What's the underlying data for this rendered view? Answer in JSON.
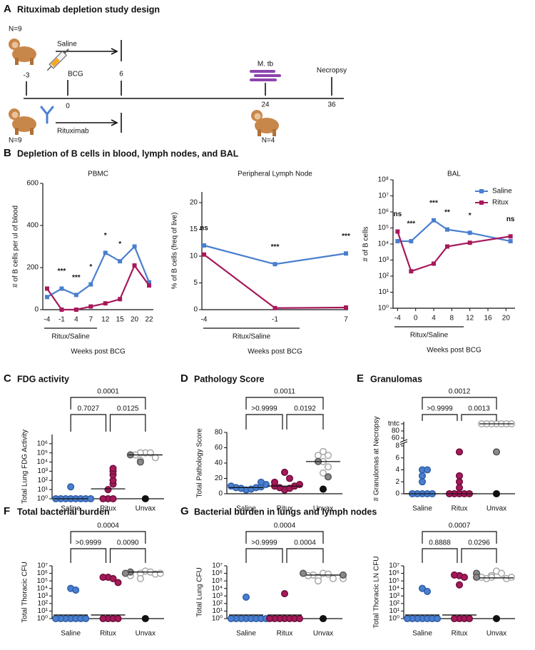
{
  "study_design": {
    "panel": "A",
    "title": "Rituximab depletion study design",
    "top_n": "N=9",
    "saline": "Saline",
    "bcg": "BCG",
    "weeks": [
      "-3",
      "0",
      "6",
      "24",
      "36"
    ],
    "mtb": "M. tb",
    "necropsy": "Necropsy",
    "rituximab": "Rituximab",
    "bottom_n": "N=9",
    "necropsy_n": "N=4"
  },
  "chart_data": [
    {
      "type": "line",
      "panel": "B",
      "title": "Depletion of B cells in blood, lymph nodes, and BAL",
      "subtitle": "PBMC",
      "categories": [
        "-4",
        "-1",
        "4",
        "7",
        "12",
        "15",
        "20",
        "22"
      ],
      "ylim": [
        0,
        600
      ],
      "yticks": [
        0,
        200,
        400,
        600
      ],
      "ylabel": "# of B cells per ul of blood",
      "xlabel": "Weeks post BCG",
      "treatment": "Ritux/Saline",
      "series": [
        {
          "name": "Saline",
          "color": "#4a7fcf",
          "values": [
            60,
            100,
            70,
            120,
            270,
            230,
            300,
            130
          ]
        },
        {
          "name": "Ritux",
          "color": "#a6195a",
          "values": [
            100,
            0,
            0,
            15,
            30,
            50,
            210,
            115
          ]
        }
      ],
      "significance": [
        null,
        "***",
        "***",
        "*",
        "*",
        "*",
        null,
        null
      ]
    },
    {
      "type": "line",
      "subtitle": "Peripheral Lymph Node",
      "categories": [
        "-4",
        "-1",
        "7"
      ],
      "ylim": [
        0,
        22
      ],
      "yticks": [
        0,
        5,
        10,
        15,
        20
      ],
      "ylabel": "% of B cells (freq of live)",
      "xlabel": "Weeks post BCG",
      "treatment": "Ritux/Saline",
      "series": [
        {
          "name": "Saline",
          "color": "#4a7fcf",
          "values": [
            12,
            8.5,
            10.5
          ]
        },
        {
          "name": "Ritux",
          "color": "#a6195a",
          "values": [
            10.3,
            0.3,
            0.4
          ]
        }
      ],
      "significance": [
        "ns",
        "***",
        "***"
      ]
    },
    {
      "type": "line",
      "subtitle": "BAL",
      "log_scale": true,
      "legend": "top-right",
      "xlim": [
        -5,
        22
      ],
      "xticks": [
        -4,
        0,
        4,
        8,
        12,
        16,
        20
      ],
      "ylim": [
        1,
        100000000
      ],
      "yticks": [
        {
          "value": 1,
          "label": "10⁰"
        },
        {
          "value": 10,
          "label": "10¹"
        },
        {
          "value": 100,
          "label": "10²"
        },
        {
          "value": 1000,
          "label": "10³"
        },
        {
          "value": 10000,
          "label": "10⁴"
        },
        {
          "value": 100000,
          "label": "10⁵"
        },
        {
          "value": 1000000,
          "label": "10⁶"
        },
        {
          "value": 10000000,
          "label": "10⁷"
        },
        {
          "value": 100000000,
          "label": "10⁸"
        }
      ],
      "ylabel": "# of B cells",
      "xlabel": "Weeks post BCG",
      "treatment": "Ritux/Saline",
      "series": [
        {
          "name": "Saline",
          "color": "#4a7fcf",
          "x": [
            -4,
            -1,
            4,
            7,
            12,
            21
          ],
          "values": [
            15000,
            15000,
            300000,
            80000,
            50000,
            15000
          ]
        },
        {
          "name": "Ritux",
          "color": "#a6195a",
          "x": [
            -4,
            -1,
            4,
            7,
            12,
            21
          ],
          "values": [
            60000,
            200,
            600,
            7000,
            12000,
            30000
          ]
        }
      ],
      "significance": [
        "ns",
        "***",
        "***",
        "**",
        "*",
        "ns"
      ]
    },
    {
      "type": "strip",
      "panel": "C",
      "title": "FDG activity",
      "log_scale": true,
      "ylim": [
        1,
        10000000
      ],
      "yticks": [
        {
          "value": 1,
          "label": "10⁰"
        },
        {
          "value": 10,
          "label": "10¹"
        },
        {
          "value": 100,
          "label": "10²"
        },
        {
          "value": 1000,
          "label": "10³"
        },
        {
          "value": 10000,
          "label": "10⁴"
        },
        {
          "value": 100000,
          "label": "10⁵"
        },
        {
          "value": 1000000,
          "label": "10⁶"
        }
      ],
      "ylabel": "Total Lung FDG Activity",
      "p_values": [
        "0.7027",
        "0.0125",
        "0.0001"
      ],
      "groups": [
        {
          "name": "Saline",
          "median": 1,
          "points": [
            {
              "fill": "#4a7fcf",
              "stroke": "#2f5fa8",
              "values": [
                1,
                1,
                1,
                1,
                1,
                1,
                1,
                1,
                20
              ]
            }
          ]
        },
        {
          "name": "Ritux",
          "median": 12,
          "points": [
            {
              "fill": "#a6195a",
              "stroke": "#6e0f3a",
              "values": [
                1,
                1,
                1,
                10,
                40,
                100,
                400,
                1000,
                2000
              ]
            }
          ]
        },
        {
          "name": "Unvax",
          "median": 60000,
          "points": [
            {
              "fill": "#ffffff",
              "stroke": "#a8a8a8",
              "values": [
                100000,
                100000,
                100000,
                30000,
                60000,
                15000
              ]
            },
            {
              "fill": "#8a8a8a",
              "stroke": "#555555",
              "values": [
                60000,
                10000
              ]
            },
            {
              "fill": "#111111",
              "stroke": "#111111",
              "values": [
                1
              ]
            }
          ]
        }
      ]
    },
    {
      "type": "strip",
      "panel": "D",
      "title": "Pathology Score",
      "ylim": [
        0,
        80
      ],
      "yticks": [
        0,
        20,
        40,
        60,
        80
      ],
      "ylabel": "Total Pathology Score",
      "p_values": [
        ">0.9999",
        "0.0192",
        "0.0011"
      ],
      "groups": [
        {
          "name": "Saline",
          "median": 8,
          "points": [
            {
              "fill": "#4a7fcf",
              "stroke": "#2f5fa8",
              "values": [
                5,
                6,
                7,
                8,
                8,
                9,
                10,
                12,
                15
              ]
            }
          ]
        },
        {
          "name": "Ritux",
          "median": 10,
          "points": [
            {
              "fill": "#a6195a",
              "stroke": "#6e0f3a",
              "values": [
                5,
                7,
                8,
                10,
                10,
                12,
                15,
                20,
                28
              ]
            }
          ]
        },
        {
          "name": "Unvax",
          "median": 42,
          "points": [
            {
              "fill": "#ffffff",
              "stroke": "#a8a8a8",
              "values": [
                55,
                50,
                50,
                42,
                35,
                27
              ]
            },
            {
              "fill": "#8a8a8a",
              "stroke": "#555555",
              "values": [
                42,
                22
              ]
            },
            {
              "fill": "#111111",
              "stroke": "#111111",
              "values": [
                6
              ]
            }
          ]
        }
      ]
    },
    {
      "type": "strip",
      "panel": "E",
      "title": "Granulomas",
      "ylim": [
        0,
        8
      ],
      "upper_ylim": [
        60,
        80
      ],
      "yticks": [
        0,
        2,
        4,
        6,
        8,
        60,
        80,
        "tntc"
      ],
      "ylabel": "# Granulomas at Necropsy",
      "p_values": [
        ">0.9999",
        "0.0013",
        "0.0012"
      ],
      "groups": [
        {
          "name": "Saline",
          "median": 0,
          "points": [
            {
              "fill": "#4a7fcf",
              "stroke": "#2f5fa8",
              "values": [
                4,
                4,
                3,
                2,
                0,
                0,
                0,
                0,
                0
              ]
            }
          ]
        },
        {
          "name": "Ritux",
          "median": 0,
          "points": [
            {
              "fill": "#a6195a",
              "stroke": "#6e0f3a",
              "values": [
                7,
                3,
                2,
                1,
                0,
                0,
                0,
                0,
                0
              ]
            }
          ]
        },
        {
          "name": "Unvax",
          "median": "tntc",
          "points": [
            {
              "fill": "#ffffff",
              "stroke": "#a8a8a8",
              "values": [
                "tntc",
                "tntc",
                "tntc",
                "tntc",
                "tntc",
                "tntc",
                "tntc"
              ]
            },
            {
              "fill": "#8a8a8a",
              "stroke": "#555555",
              "values": [
                7
              ]
            },
            {
              "fill": "#111111",
              "stroke": "#111111",
              "values": [
                0
              ]
            }
          ]
        }
      ]
    },
    {
      "type": "strip",
      "panel": "F",
      "title": "Total bacterial burden",
      "log_scale": true,
      "ylim": [
        1,
        10000000
      ],
      "yticks": [
        {
          "value": 1,
          "label": "10⁰"
        },
        {
          "value": 10,
          "label": "10¹"
        },
        {
          "value": 100,
          "label": "10²"
        },
        {
          "value": 1000,
          "label": "10³"
        },
        {
          "value": 10000,
          "label": "10⁴"
        },
        {
          "value": 100000,
          "label": "10⁵"
        },
        {
          "value": 1000000,
          "label": "10⁶"
        },
        {
          "value": 10000000,
          "label": "10⁷"
        }
      ],
      "ylabel": "Total Thoracic CFU",
      "p_values": [
        ">0.9999",
        "0.0090",
        "0.0004"
      ],
      "groups": [
        {
          "name": "Saline",
          "median": 3,
          "points": [
            {
              "fill": "#4a7fcf",
              "stroke": "#2f5fa8",
              "values": [
                10000,
                6000,
                1,
                1,
                1,
                1,
                1,
                1,
                1
              ]
            }
          ]
        },
        {
          "name": "Ritux",
          "median": 3,
          "points": [
            {
              "fill": "#a6195a",
              "stroke": "#6e0f3a",
              "values": [
                300000,
                200000,
                300000,
                60000,
                1,
                1,
                1,
                1
              ]
            }
          ]
        },
        {
          "name": "Unvax",
          "median": 1500000,
          "points": [
            {
              "fill": "#ffffff",
              "stroke": "#a8a8a8",
              "values": [
                2000000,
                1500000,
                1000000,
                800000,
                200000,
                1000000,
                500000
              ]
            },
            {
              "fill": "#8a8a8a",
              "stroke": "#555555",
              "values": [
                1500000,
                1000000
              ]
            },
            {
              "fill": "#111111",
              "stroke": "#111111",
              "values": [
                1
              ]
            }
          ]
        }
      ]
    },
    {
      "type": "strip",
      "panel": "G",
      "title": "Bacterial burden in lungs and lymph nodes",
      "log_scale": true,
      "ylim": [
        1,
        10000000
      ],
      "yticks": [
        {
          "value": 1,
          "label": "10⁰"
        },
        {
          "value": 10,
          "label": "10¹"
        },
        {
          "value": 100,
          "label": "10²"
        },
        {
          "value": 1000,
          "label": "10³"
        },
        {
          "value": 10000,
          "label": "10⁴"
        },
        {
          "value": 100000,
          "label": "10⁵"
        },
        {
          "value": 1000000,
          "label": "10⁶"
        },
        {
          "value": 10000000,
          "label": "10⁷"
        }
      ],
      "ylabel": "Total Lung CFU",
      "p_values": [
        ">0.9999",
        "0.0004",
        "0.0004"
      ],
      "groups": [
        {
          "name": "Saline",
          "median": 3,
          "points": [
            {
              "fill": "#4a7fcf",
              "stroke": "#2f5fa8",
              "values": [
                700,
                1,
                1,
                1,
                1,
                1,
                1,
                1,
                1
              ]
            }
          ]
        },
        {
          "name": "Ritux",
          "median": 3,
          "points": [
            {
              "fill": "#a6195a",
              "stroke": "#6e0f3a",
              "values": [
                2000,
                1,
                1,
                1,
                1,
                1,
                1,
                1
              ]
            }
          ]
        },
        {
          "name": "Unvax",
          "median": 600000,
          "points": [
            {
              "fill": "#ffffff",
              "stroke": "#a8a8a8",
              "values": [
                1000000,
                800000,
                300000,
                200000,
                600000,
                100000,
                500000,
                200000
              ]
            },
            {
              "fill": "#8a8a8a",
              "stroke": "#555555",
              "values": [
                600000,
                1000000
              ]
            },
            {
              "fill": "#111111",
              "stroke": "#111111",
              "values": [
                1
              ]
            }
          ]
        }
      ]
    },
    {
      "type": "strip",
      "log_scale": true,
      "ylim": [
        1,
        10000000
      ],
      "yticks": [
        {
          "value": 1,
          "label": "10⁰"
        },
        {
          "value": 10,
          "label": "10¹"
        },
        {
          "value": 100,
          "label": "10²"
        },
        {
          "value": 1000,
          "label": "10³"
        },
        {
          "value": 10000,
          "label": "10⁴"
        },
        {
          "value": 100000,
          "label": "10⁵"
        },
        {
          "value": 1000000,
          "label": "10⁶"
        },
        {
          "value": 10000000,
          "label": "10⁷"
        }
      ],
      "ylabel": "Total Thoracic LN CFU",
      "p_values": [
        "0.8888",
        "0.0296",
        "0.0007"
      ],
      "groups": [
        {
          "name": "Saline",
          "median": 3,
          "points": [
            {
              "fill": "#4a7fcf",
              "stroke": "#2f5fa8",
              "values": [
                10000,
                4000,
                1,
                1,
                1,
                1,
                1,
                1,
                1
              ]
            }
          ]
        },
        {
          "name": "Ritux",
          "median": 3,
          "points": [
            {
              "fill": "#a6195a",
              "stroke": "#6e0f3a",
              "values": [
                500000,
                300000,
                600000,
                30000,
                1,
                1,
                1,
                1
              ]
            }
          ]
        },
        {
          "name": "Unvax",
          "median": 250000,
          "points": [
            {
              "fill": "#ffffff",
              "stroke": "#a8a8a8",
              "values": [
                2000000,
                1000000,
                500000,
                300000,
                200000,
                200000,
                300000,
                300000
              ]
            },
            {
              "fill": "#8a8a8a",
              "stroke": "#555555",
              "values": [
                1000000,
                300000
              ]
            },
            {
              "fill": "#111111",
              "stroke": "#111111",
              "values": [
                1
              ]
            }
          ]
        }
      ]
    }
  ]
}
